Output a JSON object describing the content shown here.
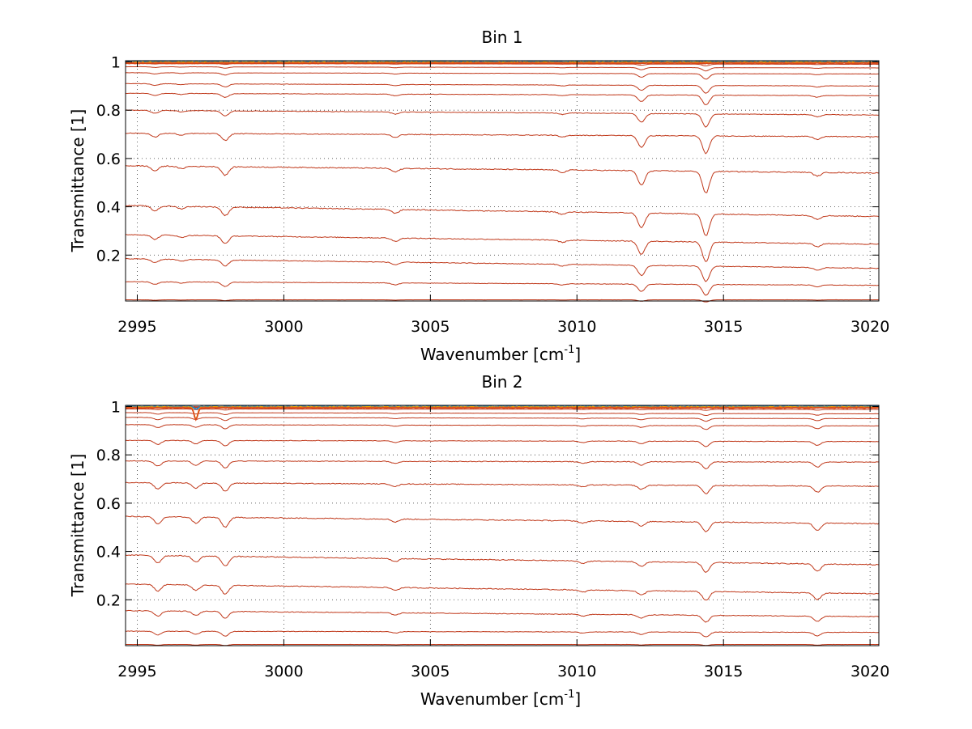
{
  "chart_data": [
    {
      "type": "line",
      "title": "Bin 1",
      "xlabel": "Wavenumber [cm",
      "xlabel_sup": "-1",
      "xlabel_end": "]",
      "ylabel": "Transmittance [1]",
      "xlim": [
        2994.6,
        3020.3
      ],
      "ylim": [
        0.01,
        1.005
      ],
      "xticks": [
        2995,
        3000,
        3005,
        3010,
        3015,
        3020
      ],
      "xtick_labels": [
        "2995",
        "3000",
        "3005",
        "3010",
        "3015",
        "3020"
      ],
      "yticks": [
        0.2,
        0.4,
        0.6,
        0.8,
        1
      ],
      "ytick_labels": [
        "0.2",
        "0.4",
        "0.6",
        "0.8",
        "1"
      ],
      "grid": true,
      "grid_style": "dotted",
      "absorption_lines": [
        {
          "x": 2995.6,
          "depth": 0.02
        },
        {
          "x": 2996.5,
          "depth": 0.01
        },
        {
          "x": 2998.0,
          "depth": 0.035
        },
        {
          "x": 3003.8,
          "depth": 0.015
        },
        {
          "x": 3009.5,
          "depth": 0.01
        },
        {
          "x": 3012.2,
          "depth": 0.06
        },
        {
          "x": 3014.4,
          "depth": 0.09
        },
        {
          "x": 3018.2,
          "depth": 0.015
        }
      ],
      "series_color": "#c0391b",
      "top_colors": [
        "#2a7fb8",
        "#f2a900",
        "#e8601c",
        "#d9481a"
      ],
      "series": [
        {
          "start": 1.0,
          "end": 1.0,
          "scale": 0.02
        },
        {
          "start": 0.998,
          "end": 0.997,
          "scale": 0.04
        },
        {
          "start": 0.993,
          "end": 0.99,
          "scale": 0.08
        },
        {
          "start": 0.98,
          "end": 0.975,
          "scale": 0.15
        },
        {
          "start": 0.955,
          "end": 0.95,
          "scale": 0.25
        },
        {
          "start": 0.91,
          "end": 0.9,
          "scale": 0.35
        },
        {
          "start": 0.87,
          "end": 0.86,
          "scale": 0.45
        },
        {
          "start": 0.8,
          "end": 0.78,
          "scale": 0.6
        },
        {
          "start": 0.705,
          "end": 0.69,
          "scale": 0.8
        },
        {
          "start": 0.57,
          "end": 0.54,
          "scale": 1.0
        },
        {
          "start": 0.405,
          "end": 0.36,
          "scale": 1.0
        },
        {
          "start": 0.285,
          "end": 0.245,
          "scale": 0.9
        },
        {
          "start": 0.185,
          "end": 0.145,
          "scale": 0.7
        },
        {
          "start": 0.09,
          "end": 0.075,
          "scale": 0.5
        },
        {
          "start": 0.015,
          "end": 0.015,
          "scale": 0.1
        }
      ]
    },
    {
      "type": "line",
      "title": "Bin 2",
      "xlabel": "Wavenumber [cm",
      "xlabel_sup": "-1",
      "xlabel_end": "]",
      "ylabel": "Transmittance [1]",
      "xlim": [
        2994.6,
        3020.3
      ],
      "ylim": [
        0.01,
        1.005
      ],
      "xticks": [
        2995,
        3000,
        3005,
        3010,
        3015,
        3020
      ],
      "xtick_labels": [
        "2995",
        "3000",
        "3005",
        "3010",
        "3015",
        "3020"
      ],
      "yticks": [
        0.2,
        0.4,
        0.6,
        0.8,
        1
      ],
      "ytick_labels": [
        "0.2",
        "0.4",
        "0.6",
        "0.8",
        "1"
      ],
      "grid": true,
      "grid_style": "dotted",
      "absorption_lines": [
        {
          "x": 2995.7,
          "depth": 0.03
        },
        {
          "x": 2997.0,
          "depth": 0.025
        },
        {
          "x": 2998.0,
          "depth": 0.04
        },
        {
          "x": 3003.8,
          "depth": 0.012
        },
        {
          "x": 3010.2,
          "depth": 0.01
        },
        {
          "x": 3012.2,
          "depth": 0.02
        },
        {
          "x": 3014.4,
          "depth": 0.04
        },
        {
          "x": 3018.2,
          "depth": 0.03
        }
      ],
      "series_color": "#c0391b",
      "top_colors": [
        "#2a7fb8",
        "#f2a900",
        "#e8601c",
        "#d9481a"
      ],
      "top_dip": {
        "x": 2997.0,
        "value": 0.95
      },
      "series": [
        {
          "start": 1.0,
          "end": 1.0,
          "scale": 0.02
        },
        {
          "start": 0.998,
          "end": 0.997,
          "scale": 0.05
        },
        {
          "start": 0.99,
          "end": 0.988,
          "scale": 0.1
        },
        {
          "start": 0.975,
          "end": 0.97,
          "scale": 0.2
        },
        {
          "start": 0.955,
          "end": 0.95,
          "scale": 0.3
        },
        {
          "start": 0.925,
          "end": 0.92,
          "scale": 0.4
        },
        {
          "start": 0.86,
          "end": 0.855,
          "scale": 0.55
        },
        {
          "start": 0.775,
          "end": 0.77,
          "scale": 0.7
        },
        {
          "start": 0.685,
          "end": 0.67,
          "scale": 0.85
        },
        {
          "start": 0.545,
          "end": 0.515,
          "scale": 1.0
        },
        {
          "start": 0.385,
          "end": 0.345,
          "scale": 1.0
        },
        {
          "start": 0.265,
          "end": 0.225,
          "scale": 0.9
        },
        {
          "start": 0.155,
          "end": 0.13,
          "scale": 0.7
        },
        {
          "start": 0.07,
          "end": 0.065,
          "scale": 0.5
        },
        {
          "start": 0.015,
          "end": 0.015,
          "scale": 0.1
        }
      ]
    }
  ]
}
